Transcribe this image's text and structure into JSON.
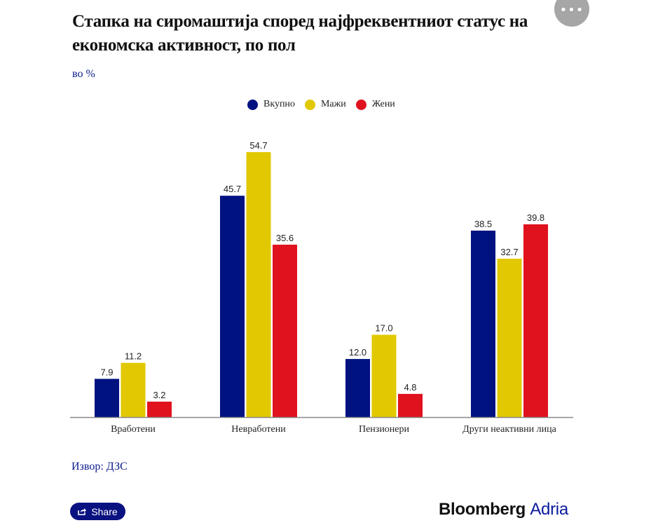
{
  "header": {
    "title": "Стапка на сиромаштија според најфреквентниот статус на економска активност, по пол",
    "subtitle": "во %",
    "more_icon": "more-horizontal-icon"
  },
  "footer": {
    "source": "Извор: ДЗС",
    "share_label": "Share",
    "share_icon": "share-icon",
    "brand_main": "Bloomberg",
    "brand_accent": "Adria"
  },
  "colors": {
    "Вкупно": "#001180",
    "Мажи": "#e2c800",
    "Жени": "#e0121e",
    "axis": "#888888",
    "accent": "#0a1a8c"
  },
  "chart_data": {
    "type": "bar",
    "title": "Стапка на сиромаштија според најфреквентниот статус на економска активност, по пол",
    "subtitle": "во %",
    "xlabel": "",
    "ylabel": "",
    "ylim": [
      0,
      60
    ],
    "grid": false,
    "legend_position": "top-center",
    "categories": [
      "Вработени",
      "Невработени",
      "Пензионери",
      "Други неактивни лица"
    ],
    "series": [
      {
        "name": "Вкупно",
        "values": [
          7.9,
          45.7,
          12.0,
          38.5
        ],
        "labels": [
          "7.9",
          "45.7",
          "12.0",
          "38.5"
        ]
      },
      {
        "name": "Мажи",
        "values": [
          11.2,
          54.7,
          17.0,
          32.7
        ],
        "labels": [
          "11.2",
          "54.7",
          "17.0",
          "32.7"
        ]
      },
      {
        "name": "Жени",
        "values": [
          3.2,
          35.6,
          4.8,
          39.8
        ],
        "labels": [
          "3.2",
          "35.6",
          "4.8",
          "39.8"
        ]
      }
    ]
  }
}
